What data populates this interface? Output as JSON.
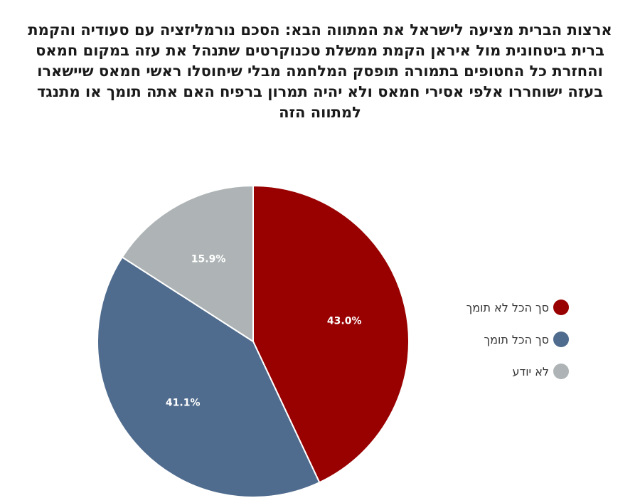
{
  "chart_data": {
    "type": "pie",
    "title": "ארצות הברית מציעה לישראל את המתווה הבא: הסכם נורמליזציה עם סעודיה והקמת ברית ביטחונית מול איראן הקמת ממשלת טכנוקרטים שתנהל את עזה במקום חמאס והחזרת כל החטופים בתמורה  תופסק המלחמה מבלי שיחוסלו ראשי חמאס שיישארו בעזה ישוחררו אלפי אסירי חמאס ולא יהיה תמרון ברפיח האם אתה תומך או מתנגד למתווה הזה",
    "legend_position": "right",
    "slices": [
      {
        "label": "סך הכל לא תומך",
        "value": 43.0,
        "display": "43.0%",
        "color": "#990000"
      },
      {
        "label": "סך הכל תומך",
        "value": 41.1,
        "display": "41.1%",
        "color": "#4f6b8d"
      },
      {
        "label": "לא יודע",
        "value": 15.9,
        "display": "15.9%",
        "color": "#aeb4b5"
      }
    ]
  }
}
